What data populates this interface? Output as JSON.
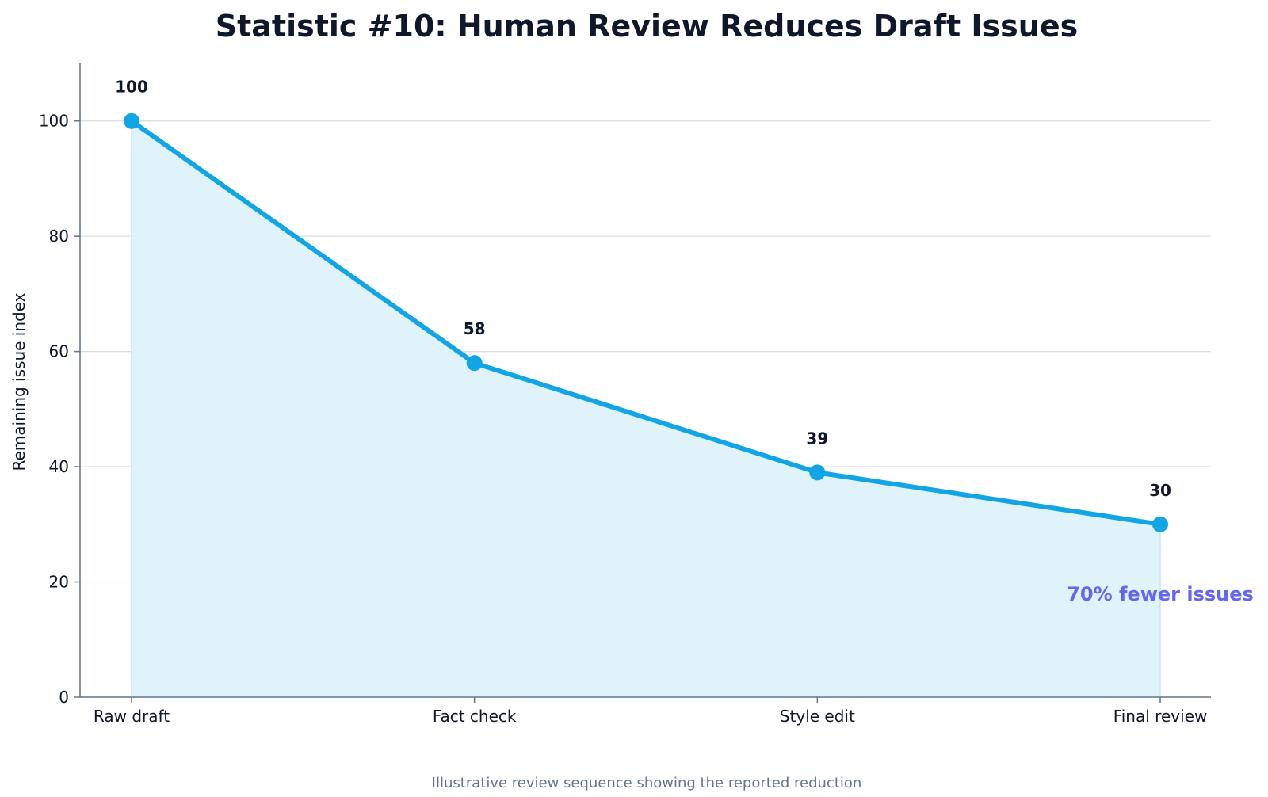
{
  "chart_data": {
    "type": "area",
    "title": "Statistic #10: Human Review Reduces Draft Issues",
    "xlabel": "",
    "ylabel": "Remaining issue index",
    "categories": [
      "Raw draft",
      "Fact check",
      "Style edit",
      "Final review"
    ],
    "values": [
      100,
      58,
      39,
      30
    ],
    "data_labels": [
      "100",
      "58",
      "39",
      "30"
    ],
    "ylim": [
      0,
      110
    ],
    "yticks": [
      0,
      20,
      40,
      60,
      80,
      100
    ],
    "grid": "horizontal",
    "annotation": "70% fewer issues",
    "caption": "Illustrative review sequence showing the reported reduction"
  },
  "colors": {
    "line": "#12a5e4",
    "fill": "#e0f3fa",
    "annotation": "#6366f1",
    "grid": "#d5dde5",
    "axis": "#64748b",
    "text": "#0f172a",
    "caption": "#64748b"
  }
}
